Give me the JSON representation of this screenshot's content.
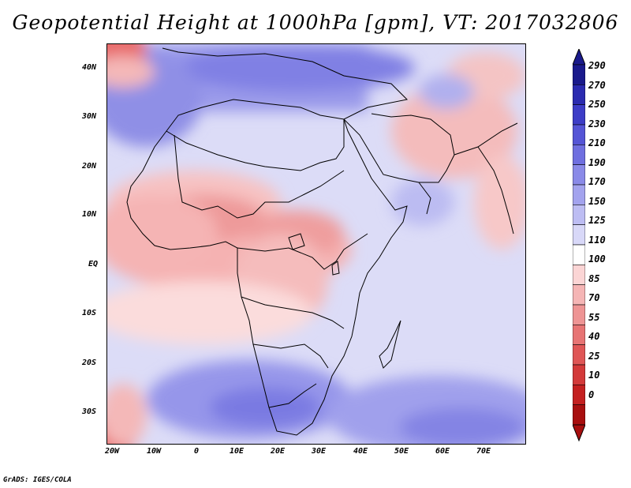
{
  "title": "Geopotential Height at 1000hPa [gpm], VT: 2017032806",
  "footer": "GrADS: IGES/COLA",
  "x_ticks": [
    "20W",
    "10W",
    "0",
    "10E",
    "20E",
    "30E",
    "40E",
    "50E",
    "60E",
    "70E"
  ],
  "y_ticks": [
    "40N",
    "30N",
    "20N",
    "10N",
    "EQ",
    "10S",
    "20S",
    "30S"
  ],
  "colorbar": {
    "levels": [
      "290",
      "270",
      "250",
      "230",
      "210",
      "190",
      "170",
      "150",
      "125",
      "110",
      "100",
      "85",
      "70",
      "55",
      "40",
      "25",
      "10",
      "0"
    ],
    "colors": [
      "#1a1a8c",
      "#2b2bb0",
      "#3d3dc7",
      "#5555d6",
      "#6f6fe0",
      "#8a8ae8",
      "#a3a3ee",
      "#bdbdf3",
      "#d8d8f8",
      "#ffffff",
      "#fbd5d5",
      "#f5b5b5",
      "#ee9494",
      "#e77474",
      "#df5656",
      "#d33a3a",
      "#c42020",
      "#a80f0f"
    ]
  }
}
